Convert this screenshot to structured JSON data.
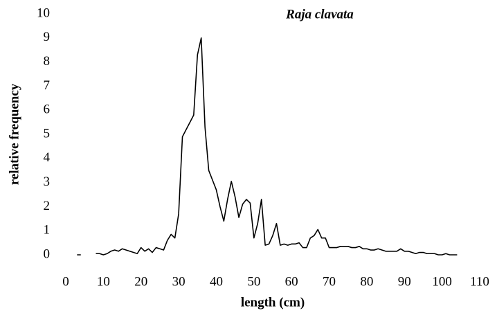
{
  "chart_data": {
    "type": "line",
    "title": "Raja clavata",
    "x_label": "length (cm)",
    "y_label": "relative frequency",
    "x": [
      3,
      4,
      5,
      6,
      7,
      8,
      9,
      10,
      11,
      12,
      13,
      14,
      15,
      16,
      17,
      18,
      19,
      20,
      21,
      22,
      23,
      24,
      25,
      26,
      27,
      28,
      29,
      30,
      31,
      32,
      33,
      34,
      35,
      36,
      37,
      38,
      39,
      40,
      41,
      42,
      43,
      44,
      45,
      46,
      47,
      48,
      49,
      50,
      51,
      52,
      53,
      54,
      55,
      56,
      57,
      58,
      59,
      60,
      61,
      62,
      63,
      64,
      65,
      66,
      67,
      68,
      69,
      70,
      71,
      72,
      73,
      74,
      75,
      76,
      77,
      78,
      79,
      80,
      81,
      82,
      83,
      84,
      85,
      86,
      87,
      88,
      89,
      90,
      91,
      92,
      93,
      94,
      95,
      96,
      97,
      98,
      99,
      100,
      101,
      102,
      103,
      104
    ],
    "series": [
      {
        "name": "Raja clavata",
        "color": "#000000",
        "values": [
          0,
          0,
          null,
          null,
          null,
          0.05,
          0.05,
          0,
          0.05,
          0.15,
          0.2,
          0.15,
          0.25,
          0.2,
          0.15,
          0.1,
          0.05,
          0.3,
          0.15,
          0.25,
          0.1,
          0.3,
          0.25,
          0.2,
          0.6,
          0.85,
          0.7,
          1.7,
          4.9,
          5.2,
          5.5,
          5.8,
          8.3,
          9.0,
          5.3,
          3.5,
          3.1,
          2.7,
          2.0,
          1.4,
          2.3,
          3.05,
          2.4,
          1.55,
          2.1,
          2.3,
          2.15,
          0.7,
          1.3,
          2.3,
          0.4,
          0.45,
          0.8,
          1.3,
          0.4,
          0.45,
          0.4,
          0.45,
          0.45,
          0.5,
          0.3,
          0.3,
          0.7,
          0.8,
          1.05,
          0.7,
          0.7,
          0.3,
          0.3,
          0.3,
          0.35,
          0.35,
          0.35,
          0.3,
          0.3,
          0.35,
          0.25,
          0.25,
          0.2,
          0.2,
          0.25,
          0.2,
          0.15,
          0.15,
          0.15,
          0.15,
          0.25,
          0.15,
          0.15,
          0.1,
          0.05,
          0.1,
          0.1,
          0.05,
          0.05,
          0.05,
          0,
          0,
          0.05,
          0,
          0,
          0
        ]
      }
    ],
    "xlim": [
      0,
      110
    ],
    "xticks": [
      0,
      10,
      20,
      30,
      40,
      50,
      60,
      70,
      80,
      90,
      100,
      110
    ],
    "ylim": [
      0,
      10
    ],
    "yticks": [
      0,
      1,
      2,
      3,
      4,
      5,
      6,
      7,
      8,
      9,
      10
    ],
    "grid": false
  }
}
